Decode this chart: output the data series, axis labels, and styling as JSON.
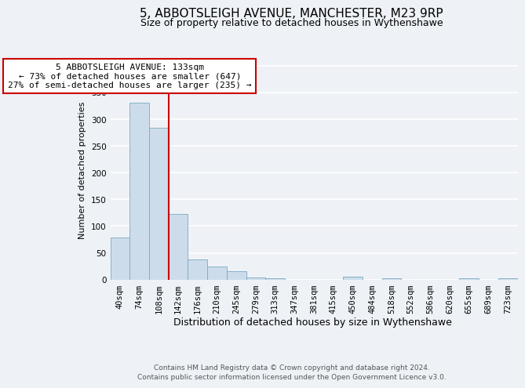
{
  "title": "5, ABBOTSLEIGH AVENUE, MANCHESTER, M23 9RP",
  "subtitle": "Size of property relative to detached houses in Wythenshawe",
  "xlabel": "Distribution of detached houses by size in Wythenshawe",
  "ylabel": "Number of detached properties",
  "bin_labels": [
    "40sqm",
    "74sqm",
    "108sqm",
    "142sqm",
    "176sqm",
    "210sqm",
    "245sqm",
    "279sqm",
    "313sqm",
    "347sqm",
    "381sqm",
    "415sqm",
    "450sqm",
    "484sqm",
    "518sqm",
    "552sqm",
    "586sqm",
    "620sqm",
    "655sqm",
    "689sqm",
    "723sqm"
  ],
  "bar_heights": [
    78,
    330,
    284,
    123,
    37,
    25,
    15,
    4,
    3,
    0,
    0,
    0,
    5,
    0,
    3,
    0,
    0,
    0,
    2,
    0,
    3
  ],
  "bar_color": "#cddceb",
  "bar_edge_color": "#7aaabf",
  "ylim": [
    0,
    410
  ],
  "yticks": [
    0,
    50,
    100,
    150,
    200,
    250,
    300,
    350,
    400
  ],
  "property_line_x": 2.5,
  "property_line_color": "#cc0000",
  "annotation_text": "5 ABBOTSLEIGH AVENUE: 133sqm\n← 73% of detached houses are smaller (647)\n27% of semi-detached houses are larger (235) →",
  "annotation_box_facecolor": "#ffffff",
  "annotation_box_edgecolor": "#cc0000",
  "footer_text": "Contains HM Land Registry data © Crown copyright and database right 2024.\nContains public sector information licensed under the Open Government Licence v3.0.",
  "background_color": "#eef2f7",
  "grid_color": "#ffffff",
  "title_fontsize": 11,
  "subtitle_fontsize": 9,
  "ylabel_fontsize": 8,
  "xlabel_fontsize": 9,
  "annotation_fontsize": 8,
  "footer_fontsize": 6.5,
  "tick_fontsize": 7.5
}
